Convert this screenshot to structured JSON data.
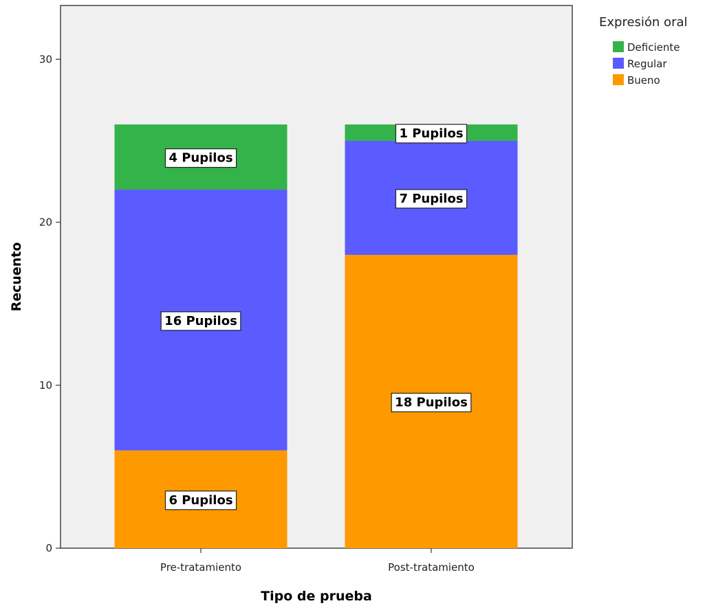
{
  "chart_data": {
    "type": "bar",
    "stacked": true,
    "categories": [
      "Pre-tratamiento",
      "Post-tratamiento"
    ],
    "series": [
      {
        "name": "Bueno",
        "values": [
          6,
          18
        ],
        "color": "#FF9900",
        "labels": [
          "6 Pupilos",
          "18 Pupilos"
        ]
      },
      {
        "name": "Regular",
        "values": [
          16,
          7
        ],
        "color": "#5B5BFF",
        "labels": [
          "16 Pupilos",
          "7 Pupilos"
        ]
      },
      {
        "name": "Deficiente",
        "values": [
          4,
          1
        ],
        "color": "#33B34A",
        "labels": [
          "4 Pupilos",
          "1 Pupilos"
        ]
      }
    ],
    "xlabel": "Tipo de prueba",
    "ylabel": "Recuento",
    "ylim": [
      0,
      33.3
    ],
    "yticks": [
      0,
      10,
      20,
      30
    ],
    "legend": {
      "title": "Expresión oral",
      "position": "top-right",
      "order": [
        "Deficiente",
        "Regular",
        "Bueno"
      ]
    },
    "grid": false,
    "plot_background": "#F0F0F0"
  }
}
